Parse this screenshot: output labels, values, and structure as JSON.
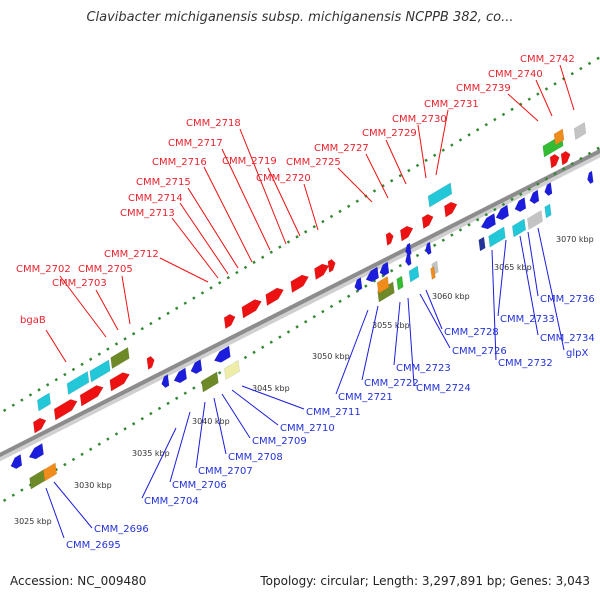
{
  "title": "Clavibacter michiganensis subsp. michiganensis NCPPB 382, co...",
  "footer": {
    "accession": "Accession: NC_009480",
    "stats": "Topology: circular; Length: 3,297,891 bp; Genes: 3,043"
  },
  "colors": {
    "backbone": "#8c8c8c",
    "forward_gene": "#ee1111",
    "reverse_gene": "#1c1cdd",
    "teal": "#22c8d8",
    "olive": "#6e8a28",
    "orange": "#f08c1c",
    "green": "#33bb33",
    "grey": "#c4c4c4",
    "light_yellow": "#eeeeaa",
    "dark_blue": "#223399",
    "tick": "#338833"
  },
  "scale": {
    "kbp_labels": [
      "3025 kbp",
      "3030 kbp",
      "3035 kbp",
      "3040 kbp",
      "3045 kbp",
      "3050 kbp",
      "3055 kbp",
      "3060 kbp",
      "3065 kbp",
      "3070 kbp"
    ]
  },
  "top_labels": [
    "bgaB",
    "CMM_2702",
    "CMM_2703",
    "CMM_2705",
    "CMM_2712",
    "CMM_2713",
    "CMM_2714",
    "CMM_2715",
    "CMM_2716",
    "CMM_2717",
    "CMM_2718",
    "CMM_2719",
    "CMM_2720",
    "CMM_2725",
    "CMM_2727",
    "CMM_2729",
    "CMM_2730",
    "CMM_2731",
    "CMM_2739",
    "CMM_2740",
    "CMM_2742"
  ],
  "bottom_labels": [
    "CMM_2695",
    "CMM_2696",
    "CMM_2704",
    "CMM_2706",
    "CMM_2707",
    "CMM_2708",
    "CMM_2709",
    "CMM_2710",
    "CMM_2711",
    "CMM_2721",
    "CMM_2722",
    "CMM_2723",
    "CMM_2724",
    "CMM_2726",
    "CMM_2728",
    "CMM_2732",
    "CMM_2733",
    "CMM_2734",
    "CMM_2736",
    "glpX"
  ]
}
